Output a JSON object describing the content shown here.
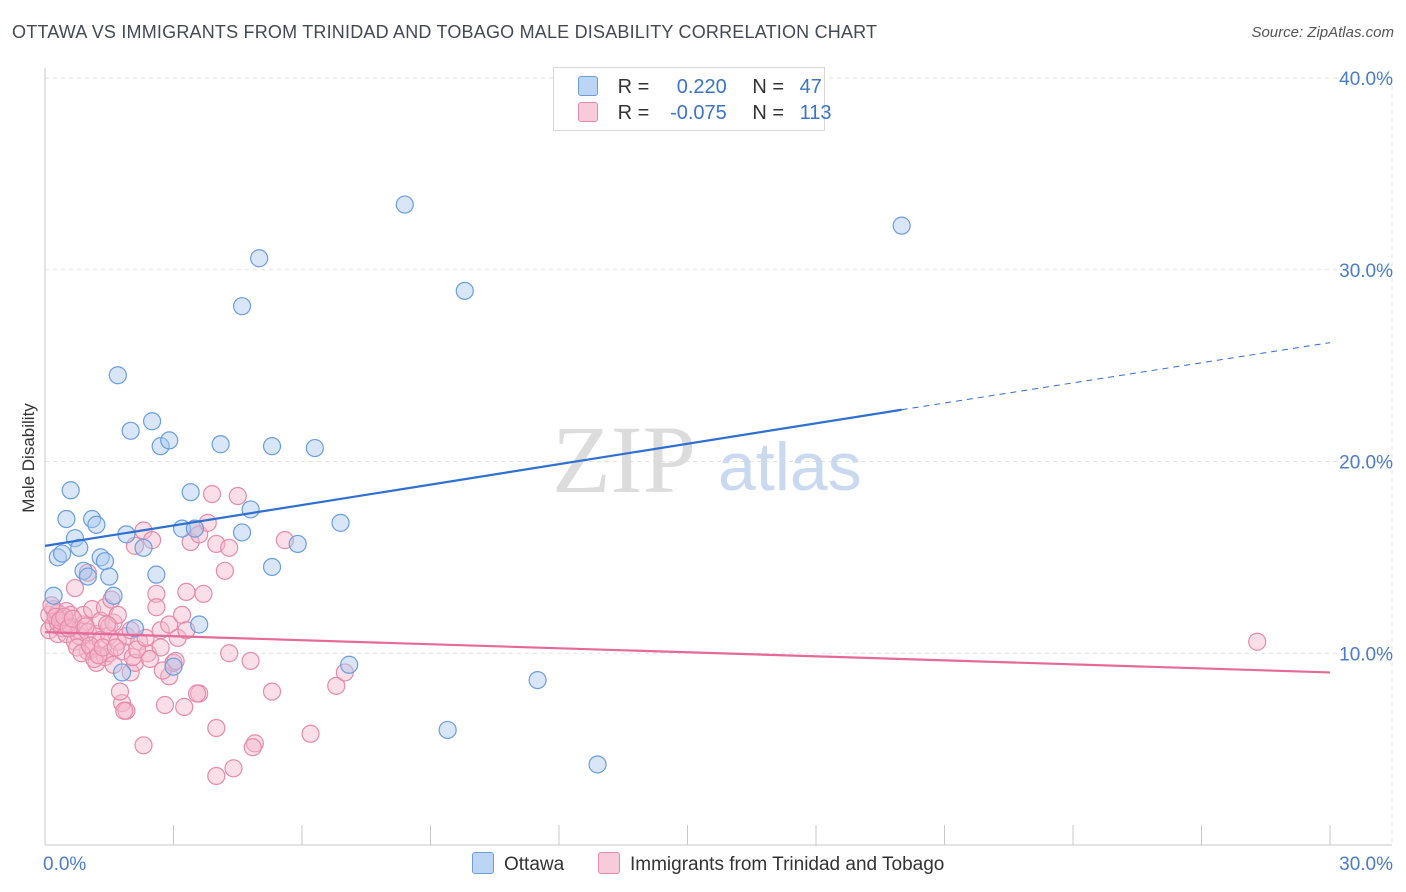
{
  "title": "OTTAWA VS IMMIGRANTS FROM TRINIDAD AND TOBAGO MALE DISABILITY CORRELATION CHART",
  "source": "Source: ZipAtlas.com",
  "watermark": {
    "zip": "ZIP",
    "atlas": "atlas"
  },
  "legend": {
    "ottawa": {
      "r_label": "R =",
      "r_value": "0.220",
      "n_label": "N =",
      "n_value": "47"
    },
    "trinidad": {
      "r_label": "R =",
      "r_value": "-0.075",
      "n_label": "N =",
      "n_value": "113"
    }
  },
  "bottom_legend": {
    "ottawa": "Ottawa",
    "trinidad": "Immigrants from Trinidad and Tobago"
  },
  "colors": {
    "ottawa_fill": "#a8c8f0",
    "ottawa_stroke": "#6a9ee0",
    "ottawa_line": "#2e6fd0",
    "trinidad_fill": "#f5b8cc",
    "trinidad_stroke": "#e88aaa",
    "trinidad_line": "#e56a97",
    "grid": "#e2e2e2",
    "axis_text": "#4a7cc9"
  },
  "chart_data": {
    "type": "scatter",
    "title": "OTTAWA VS IMMIGRANTS FROM TRINIDAD AND TOBAGO MALE DISABILITY CORRELATION CHART",
    "xlabel": "",
    "ylabel": "Male Disability",
    "xlim": [
      0,
      30
    ],
    "ylim": [
      0,
      40
    ],
    "x_tick_labels": [
      "0.0%",
      "30.0%"
    ],
    "y_ticks": [
      10,
      20,
      30,
      40
    ],
    "y_tick_labels": [
      "10.0%",
      "20.0%",
      "30.0%",
      "40.0%"
    ],
    "grid": true,
    "series": [
      {
        "name": "Ottawa",
        "R": 0.22,
        "N": 47,
        "trend": {
          "x0": 0,
          "y0": 15.6,
          "x1": 20,
          "y1": 22.7,
          "x_dash_end": 30,
          "y_dash_end": 26.2
        },
        "points": [
          [
            0.2,
            13.0
          ],
          [
            0.3,
            15.0
          ],
          [
            0.4,
            15.2
          ],
          [
            0.5,
            17.0
          ],
          [
            0.6,
            18.5
          ],
          [
            0.7,
            16.0
          ],
          [
            0.8,
            15.5
          ],
          [
            0.9,
            14.3
          ],
          [
            1.0,
            14.0
          ],
          [
            1.1,
            17.0
          ],
          [
            1.2,
            16.7
          ],
          [
            1.3,
            15.0
          ],
          [
            1.4,
            14.8
          ],
          [
            1.5,
            14.0
          ],
          [
            1.6,
            13.0
          ],
          [
            1.7,
            24.5
          ],
          [
            1.8,
            9.0
          ],
          [
            1.9,
            16.2
          ],
          [
            2.0,
            21.6
          ],
          [
            2.1,
            11.3
          ],
          [
            2.3,
            15.5
          ],
          [
            2.5,
            22.1
          ],
          [
            2.6,
            14.1
          ],
          [
            2.7,
            20.8
          ],
          [
            2.9,
            21.1
          ],
          [
            3.0,
            9.3
          ],
          [
            3.2,
            16.5
          ],
          [
            3.4,
            18.4
          ],
          [
            3.5,
            16.5
          ],
          [
            3.6,
            11.5
          ],
          [
            4.1,
            20.9
          ],
          [
            4.6,
            16.3
          ],
          [
            4.6,
            28.1
          ],
          [
            4.8,
            17.5
          ],
          [
            5.0,
            30.6
          ],
          [
            5.3,
            20.8
          ],
          [
            5.3,
            14.5
          ],
          [
            5.9,
            15.7
          ],
          [
            6.3,
            20.7
          ],
          [
            6.9,
            16.8
          ],
          [
            7.1,
            9.4
          ],
          [
            8.4,
            33.4
          ],
          [
            9.4,
            6.0
          ],
          [
            9.8,
            28.9
          ],
          [
            11.5,
            8.6
          ],
          [
            12.9,
            4.2
          ],
          [
            20.0,
            32.3
          ]
        ]
      },
      {
        "name": "Immigrants from Trinidad and Tobago",
        "R": -0.075,
        "N": 113,
        "trend": {
          "x0": 0,
          "y0": 11.1,
          "x1": 30,
          "y1": 9.0
        },
        "points": [
          [
            0.1,
            11.2
          ],
          [
            0.1,
            12.0
          ],
          [
            0.2,
            11.5
          ],
          [
            0.2,
            12.3
          ],
          [
            0.3,
            11.0
          ],
          [
            0.3,
            11.6
          ],
          [
            0.3,
            12.1
          ],
          [
            0.4,
            11.3
          ],
          [
            0.4,
            11.8
          ],
          [
            0.5,
            11.6
          ],
          [
            0.5,
            12.2
          ],
          [
            0.5,
            11.0
          ],
          [
            0.6,
            12.0
          ],
          [
            0.6,
            11.4
          ],
          [
            0.7,
            10.6
          ],
          [
            0.7,
            13.4
          ],
          [
            0.8,
            11.2
          ],
          [
            0.8,
            10.9
          ],
          [
            0.9,
            11.5
          ],
          [
            0.9,
            12.0
          ],
          [
            1.0,
            10.1
          ],
          [
            1.0,
            11.1
          ],
          [
            1.0,
            14.2
          ],
          [
            1.1,
            12.3
          ],
          [
            1.1,
            10.2
          ],
          [
            1.2,
            11.0
          ],
          [
            1.2,
            9.5
          ],
          [
            1.3,
            10.7
          ],
          [
            1.3,
            11.7
          ],
          [
            1.4,
            12.4
          ],
          [
            1.4,
            9.8
          ],
          [
            1.5,
            10.9
          ],
          [
            1.5,
            11.4
          ],
          [
            1.5,
            10.0
          ],
          [
            1.6,
            11.6
          ],
          [
            1.6,
            9.4
          ],
          [
            1.7,
            10.6
          ],
          [
            1.7,
            12.0
          ],
          [
            1.8,
            10.1
          ],
          [
            1.8,
            7.4
          ],
          [
            1.9,
            7.0
          ],
          [
            1.9,
            10.9
          ],
          [
            2.0,
            9.0
          ],
          [
            2.0,
            11.2
          ],
          [
            2.1,
            15.6
          ],
          [
            2.1,
            9.5
          ],
          [
            2.2,
            10.6
          ],
          [
            2.3,
            16.4
          ],
          [
            2.3,
            5.2
          ],
          [
            2.4,
            10.0
          ],
          [
            2.5,
            15.9
          ],
          [
            2.6,
            13.1
          ],
          [
            2.6,
            12.4
          ],
          [
            2.7,
            11.2
          ],
          [
            2.7,
            10.3
          ],
          [
            2.8,
            7.3
          ],
          [
            2.9,
            11.5
          ],
          [
            2.9,
            8.8
          ],
          [
            3.0,
            9.5
          ],
          [
            3.1,
            10.8
          ],
          [
            3.2,
            12.0
          ],
          [
            3.3,
            13.2
          ],
          [
            3.3,
            11.2
          ],
          [
            3.4,
            15.8
          ],
          [
            3.5,
            16.5
          ],
          [
            3.6,
            16.2
          ],
          [
            3.6,
            7.9
          ],
          [
            3.7,
            13.1
          ],
          [
            3.8,
            16.8
          ],
          [
            3.9,
            18.3
          ],
          [
            4.0,
            15.7
          ],
          [
            4.0,
            6.1
          ],
          [
            4.0,
            3.6
          ],
          [
            4.2,
            14.3
          ],
          [
            4.3,
            15.5
          ],
          [
            4.3,
            10.0
          ],
          [
            4.4,
            4.0
          ],
          [
            4.5,
            18.2
          ],
          [
            4.8,
            9.6
          ],
          [
            4.9,
            5.3
          ],
          [
            5.3,
            8.0
          ],
          [
            5.6,
            15.9
          ],
          [
            6.2,
            5.8
          ],
          [
            6.8,
            8.3
          ],
          [
            7.0,
            9.0
          ],
          [
            0.15,
            12.5
          ],
          [
            0.25,
            11.9
          ],
          [
            0.35,
            11.7
          ],
          [
            0.45,
            11.9
          ],
          [
            0.55,
            11.3
          ],
          [
            0.65,
            11.8
          ],
          [
            0.75,
            10.3
          ],
          [
            0.85,
            10.0
          ],
          [
            0.95,
            11.4
          ],
          [
            1.05,
            10.4
          ],
          [
            1.15,
            9.7
          ],
          [
            1.25,
            9.9
          ],
          [
            1.35,
            10.3
          ],
          [
            1.45,
            11.5
          ],
          [
            1.55,
            12.8
          ],
          [
            1.65,
            10.3
          ],
          [
            1.75,
            8.0
          ],
          [
            1.85,
            7.0
          ],
          [
            2.05,
            9.8
          ],
          [
            2.15,
            10.2
          ],
          [
            2.35,
            10.8
          ],
          [
            2.45,
            9.7
          ],
          [
            2.75,
            9.1
          ],
          [
            3.05,
            9.6
          ],
          [
            3.25,
            7.2
          ],
          [
            3.55,
            7.9
          ],
          [
            4.85,
            5.1
          ],
          [
            28.3,
            10.6
          ]
        ]
      }
    ]
  }
}
